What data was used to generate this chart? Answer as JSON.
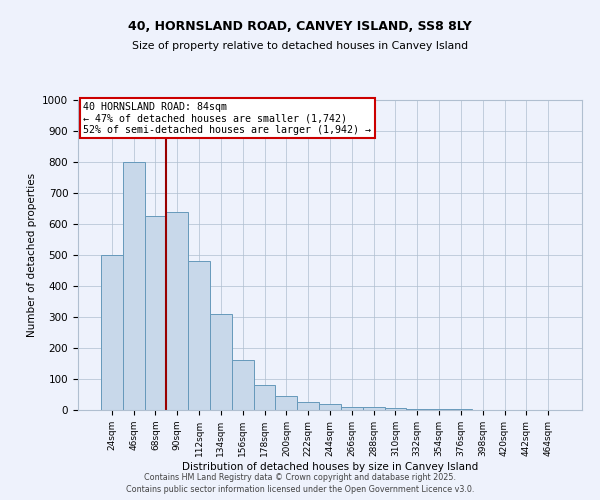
{
  "title1": "40, HORNSLAND ROAD, CANVEY ISLAND, SS8 8LY",
  "title2": "Size of property relative to detached houses in Canvey Island",
  "xlabel": "Distribution of detached houses by size in Canvey Island",
  "ylabel": "Number of detached properties",
  "categories": [
    "24sqm",
    "46sqm",
    "68sqm",
    "90sqm",
    "112sqm",
    "134sqm",
    "156sqm",
    "178sqm",
    "200sqm",
    "222sqm",
    "244sqm",
    "266sqm",
    "288sqm",
    "310sqm",
    "332sqm",
    "354sqm",
    "376sqm",
    "398sqm",
    "420sqm",
    "442sqm",
    "464sqm"
  ],
  "values": [
    500,
    800,
    625,
    640,
    480,
    310,
    160,
    80,
    45,
    25,
    20,
    10,
    10,
    5,
    3,
    2,
    2,
    1,
    1,
    1,
    1
  ],
  "bar_color": "#c8d8ea",
  "bar_edge_color": "#6699bb",
  "property_label": "40 HORNSLAND ROAD: 84sqm",
  "annotation_line1": "← 47% of detached houses are smaller (1,742)",
  "annotation_line2": "52% of semi-detached houses are larger (1,942) →",
  "vline_color": "#990000",
  "vline_x": 2.5,
  "annotation_box_edge": "#cc0000",
  "ylim": [
    0,
    1000
  ],
  "yticks": [
    0,
    100,
    200,
    300,
    400,
    500,
    600,
    700,
    800,
    900,
    1000
  ],
  "bg_color": "#eef2fc",
  "grid_color": "#b0bfd0",
  "footer1": "Contains HM Land Registry data © Crown copyright and database right 2025.",
  "footer2": "Contains public sector information licensed under the Open Government Licence v3.0."
}
